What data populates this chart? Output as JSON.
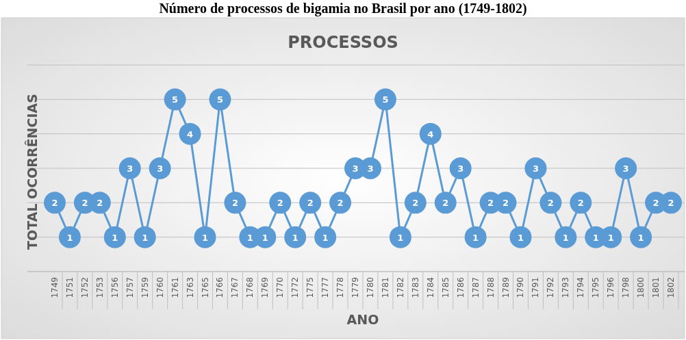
{
  "chart_data": {
    "type": "line",
    "title": "Número de processos de bigamia no Brasil por ano (1749-1802)",
    "subtitle": "PROCESSOS",
    "xlabel": "ANO",
    "ylabel": "TOTAL OCORRÊNCIAS",
    "categories": [
      "1749",
      "1751",
      "1752",
      "1753",
      "1756",
      "1757",
      "1759",
      "1760",
      "1761",
      "1763",
      "1765",
      "1766",
      "1767",
      "1768",
      "1769",
      "1770",
      "1772",
      "1775",
      "1777",
      "1778",
      "1779",
      "1780",
      "1781",
      "1782",
      "1783",
      "1784",
      "1785",
      "1786",
      "1787",
      "1788",
      "1789",
      "1790",
      "1791",
      "1792",
      "1793",
      "1794",
      "1795",
      "1796",
      "1798",
      "1800",
      "1801",
      "1802"
    ],
    "series": [
      {
        "color": "#5b9bd5",
        "values": [
          2,
          1,
          2,
          2,
          1,
          3,
          1,
          3,
          5,
          4,
          1,
          5,
          2,
          1,
          1,
          2,
          1,
          2,
          1,
          2,
          3,
          3,
          5,
          1,
          2,
          4,
          2,
          3,
          1,
          2,
          2,
          1,
          3,
          2,
          1,
          2,
          1,
          1,
          3,
          1,
          2,
          2
        ]
      }
    ],
    "ylim": [
      0,
      6
    ],
    "yticks": [
      {
        "value": 0,
        "label": null
      },
      {
        "value": 1,
        "label": null
      },
      {
        "value": 2,
        "label": null
      },
      {
        "value": 3,
        "label": null
      },
      {
        "value": 4,
        "label": null
      },
      {
        "value": 5,
        "label": null
      },
      {
        "value": 6,
        "label": null
      }
    ],
    "tick_labels": "x",
    "grid": "y",
    "marker": "circle",
    "line_style": "solid",
    "data_labels": true
  }
}
